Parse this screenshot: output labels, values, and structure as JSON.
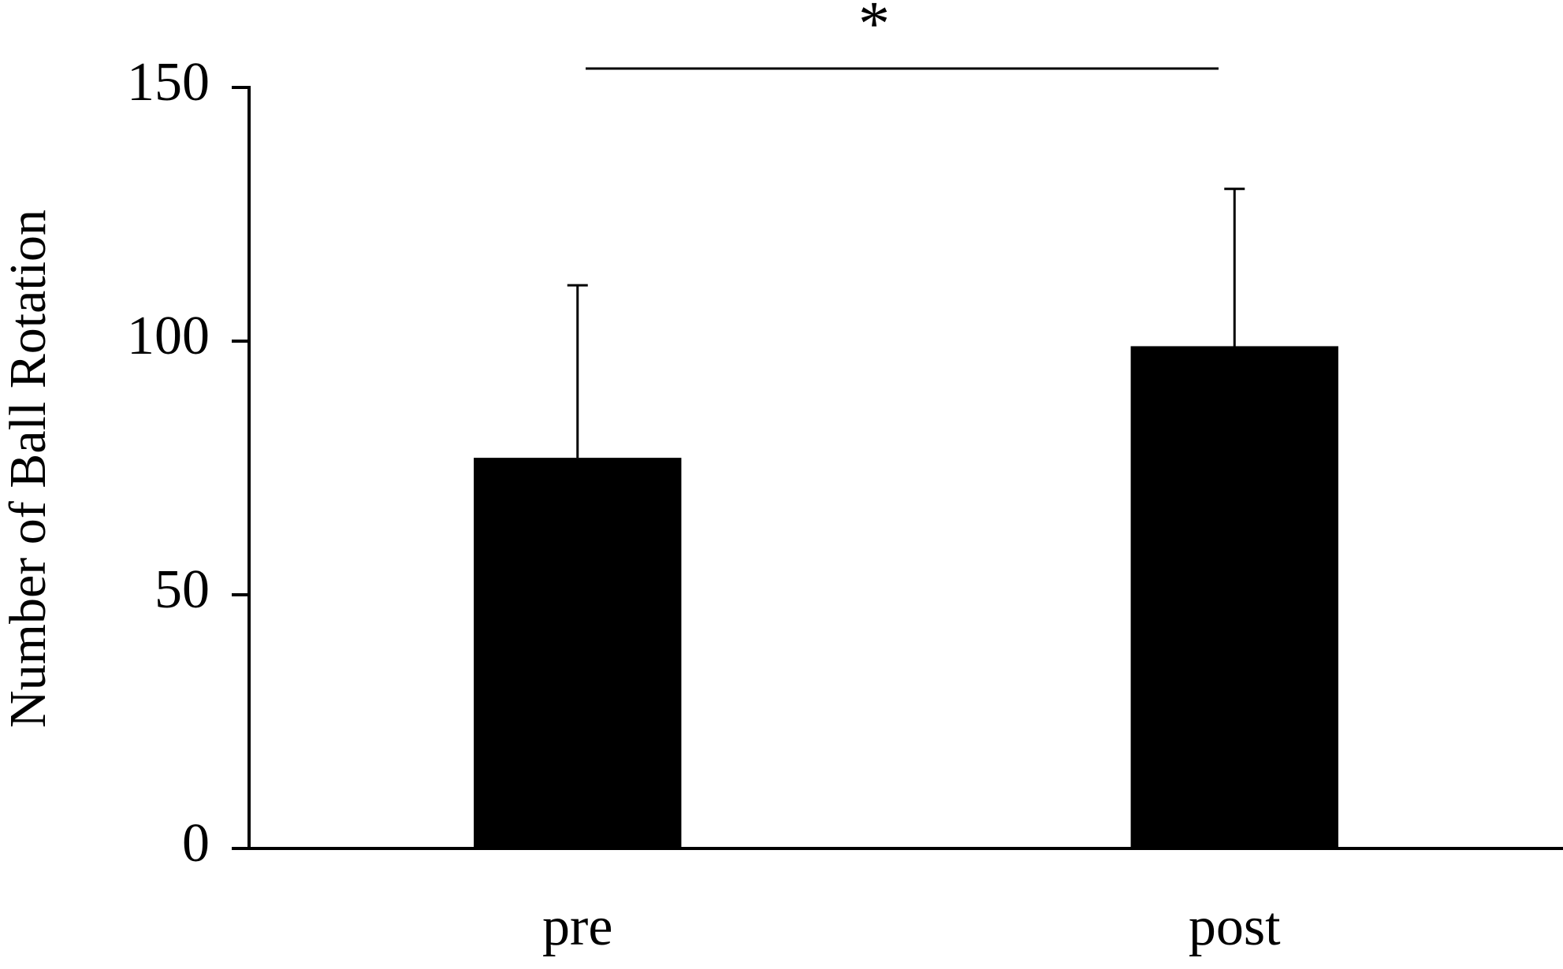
{
  "chart_data": {
    "type": "bar",
    "ylabel": "Number of Ball Rotation",
    "categories": [
      "pre",
      "post"
    ],
    "values": [
      77,
      99
    ],
    "errors": [
      34,
      31
    ],
    "color": "#000000",
    "ylim": [
      0,
      150
    ],
    "yticks": [
      0,
      50,
      100,
      150
    ],
    "grid": false,
    "annotation": "*"
  }
}
